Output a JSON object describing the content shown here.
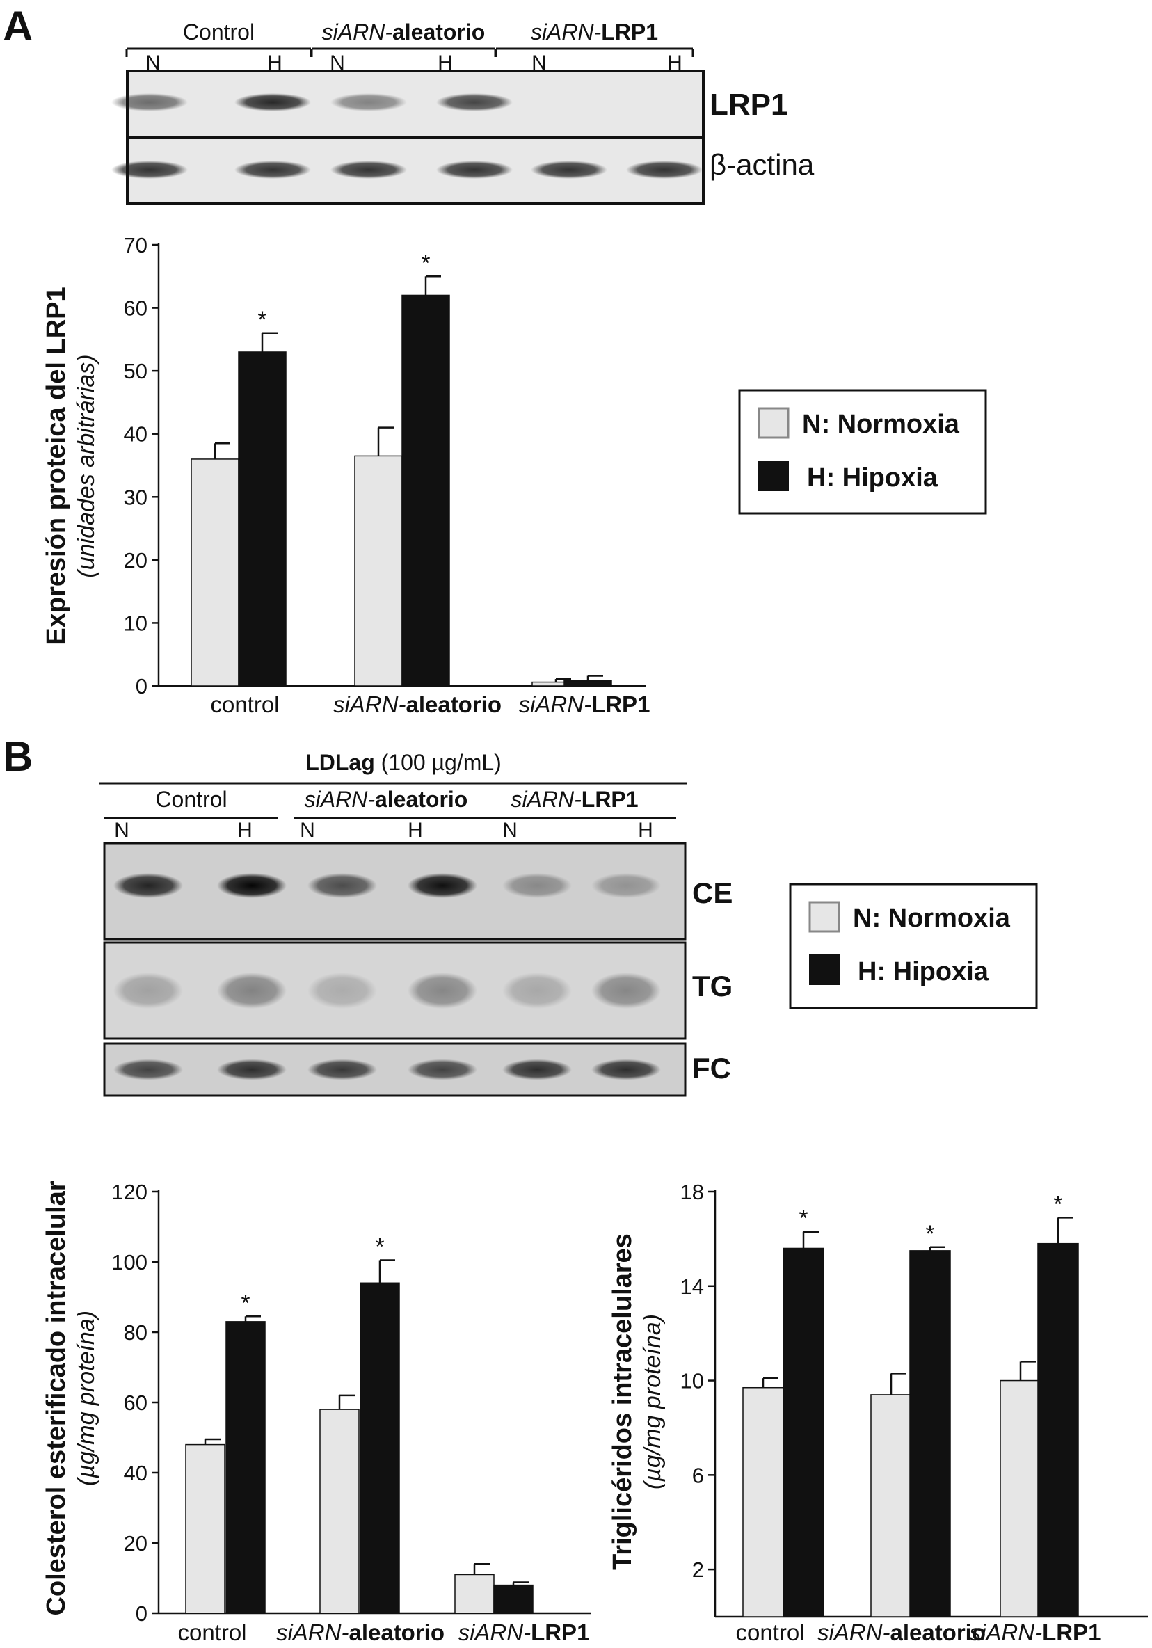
{
  "panels": {
    "a_label": "A",
    "b_label": "B"
  },
  "blot_a": {
    "groups": [
      {
        "prefix": "",
        "name": "Control"
      },
      {
        "prefix": "siARN-",
        "name": "aleatorio"
      },
      {
        "prefix": "siARN-",
        "name": "LRP1"
      }
    ],
    "lane_labels": [
      "N",
      "H",
      "N",
      "H",
      "N",
      "H"
    ],
    "rows": [
      {
        "label": "LRP1",
        "intensity": [
          0.55,
          0.85,
          0.45,
          0.72,
          0.0,
          0.0
        ]
      },
      {
        "label": "β-actina",
        "intensity": [
          0.8,
          0.8,
          0.8,
          0.8,
          0.8,
          0.8
        ]
      }
    ]
  },
  "blot_b": {
    "treatment_bold": "LDLag",
    "treatment_rest": " (100 µg/mL)",
    "groups": [
      {
        "prefix": "",
        "name": "Control"
      },
      {
        "prefix": "siARN-",
        "name": "aleatorio"
      },
      {
        "prefix": "siARN-",
        "name": "LRP1"
      }
    ],
    "lane_labels": [
      "N",
      "H",
      "N",
      "H",
      "N",
      "H"
    ],
    "rows": [
      {
        "label": "CE",
        "intensity": [
          0.85,
          1.0,
          0.65,
          0.95,
          0.35,
          0.3
        ]
      },
      {
        "label": "TG",
        "intensity": [
          0.25,
          0.4,
          0.2,
          0.38,
          0.22,
          0.38
        ]
      },
      {
        "label": "FC",
        "intensity": [
          0.7,
          0.8,
          0.75,
          0.7,
          0.8,
          0.8
        ]
      }
    ]
  },
  "legend": {
    "normoxia": "N: Normoxia",
    "hipoxia": "H: Hipoxia"
  },
  "colors": {
    "normoxia": "#e6e6e6",
    "hipoxia": "#111111"
  },
  "chart_data": [
    {
      "type": "bar",
      "ylabel": "Expresión proteica del LRP1",
      "ylabel_units": "(unidades arbitrárias)",
      "ylim": [
        0,
        70
      ],
      "yticks": [
        0,
        10,
        20,
        30,
        40,
        50,
        60,
        70
      ],
      "categories": [
        {
          "prefix": "",
          "name": "control"
        },
        {
          "prefix": "siARN-",
          "name": "aleatorio"
        },
        {
          "prefix": "siARN-",
          "name": "LRP1"
        }
      ],
      "series": [
        {
          "key": "N",
          "values": [
            36,
            36.5,
            0.6
          ],
          "errors": [
            2.5,
            4.5,
            0.5
          ]
        },
        {
          "key": "H",
          "values": [
            53,
            62,
            0.8
          ],
          "errors": [
            3,
            3,
            0.8
          ]
        }
      ],
      "significance": [
        "*",
        "*",
        ""
      ]
    },
    {
      "type": "bar",
      "ylabel": "Colesterol esterificado intracelular",
      "ylabel_units": "(µg/mg proteína)",
      "ylim": [
        0,
        120
      ],
      "yticks": [
        0,
        20,
        40,
        60,
        80,
        100,
        120
      ],
      "categories": [
        {
          "prefix": "",
          "name": "control"
        },
        {
          "prefix": "siARN-",
          "name": "aleatorio"
        },
        {
          "prefix": "siARN-",
          "name": "LRP1"
        }
      ],
      "series": [
        {
          "key": "N",
          "values": [
            48,
            58,
            11
          ],
          "errors": [
            1.5,
            4,
            3
          ]
        },
        {
          "key": "H",
          "values": [
            83,
            94,
            8
          ],
          "errors": [
            1.5,
            6.5,
            0.8
          ]
        }
      ],
      "significance": [
        "*",
        "*",
        ""
      ]
    },
    {
      "type": "bar",
      "ylabel": "Triglicéridos intracelulares",
      "ylabel_units": "(µg/mg proteína)",
      "ylim": [
        0,
        18
      ],
      "yticks": [
        2,
        6,
        10,
        14,
        18
      ],
      "categories": [
        {
          "prefix": "",
          "name": "control"
        },
        {
          "prefix": "siARN-",
          "name": "aleatorio"
        },
        {
          "prefix": "siARN-",
          "name": "LRP1"
        }
      ],
      "series": [
        {
          "key": "N",
          "values": [
            9.7,
            9.4,
            10
          ],
          "errors": [
            0.4,
            0.9,
            0.8
          ]
        },
        {
          "key": "H",
          "values": [
            15.6,
            15.5,
            15.8
          ],
          "errors": [
            0.7,
            0.15,
            1.1
          ]
        }
      ],
      "significance": [
        "*",
        "*",
        "*"
      ]
    }
  ]
}
